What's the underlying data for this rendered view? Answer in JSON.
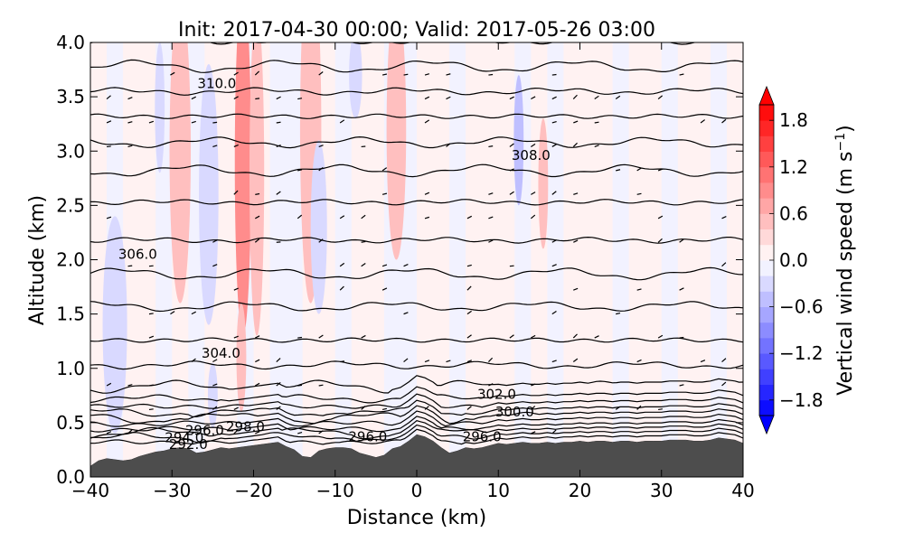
{
  "chart_data": {
    "type": "contourf",
    "title": "Init: 2017-04-30 00:00; Valid: 2017-05-26 03:00",
    "xlabel": "Distance (km)",
    "ylabel": "Altitude (km)",
    "xlim": [
      -40,
      40
    ],
    "ylim": [
      0.0,
      4.0
    ],
    "xticks": [
      "-40",
      "-30",
      "-20",
      "-10",
      "0",
      "10",
      "20",
      "30",
      "40"
    ],
    "xtick_values": [
      -40,
      -30,
      -20,
      -10,
      0,
      10,
      20,
      30,
      40
    ],
    "yticks": [
      "0.0",
      "0.5",
      "1.0",
      "1.5",
      "2.0",
      "2.5",
      "3.0",
      "3.5",
      "4.0"
    ],
    "ytick_values": [
      0.0,
      0.5,
      1.0,
      1.5,
      2.0,
      2.5,
      3.0,
      3.5,
      4.0
    ],
    "colorbar": {
      "label": "Vertical wind speed (m s",
      "label_superscript": "−1",
      "label_close": ")",
      "range": [
        -2.0,
        2.0
      ],
      "ticks": [
        "1.8",
        "1.2",
        "0.6",
        "0.0",
        "−0.6",
        "−1.2",
        "−1.8"
      ],
      "tick_values": [
        1.8,
        1.2,
        0.6,
        0.0,
        -0.6,
        -1.2,
        -1.8
      ],
      "levels": 20
    },
    "contour_labels": [
      {
        "text": "310.0",
        "x": -24.5,
        "y": 3.62
      },
      {
        "text": "308.0",
        "x": 14.0,
        "y": 2.96
      },
      {
        "text": "306.0",
        "x": -34.2,
        "y": 2.05
      },
      {
        "text": "304.0",
        "x": -24.0,
        "y": 1.14
      },
      {
        "text": "302.0",
        "x": 9.8,
        "y": 0.76
      },
      {
        "text": "300.0",
        "x": 12.0,
        "y": 0.6
      },
      {
        "text": "298.0",
        "x": -21.0,
        "y": 0.46
      },
      {
        "text": "296.0",
        "x": -26.0,
        "y": 0.43
      },
      {
        "text": "294.0",
        "x": -28.5,
        "y": 0.36
      },
      {
        "text": "292.0",
        "x": -28.0,
        "y": 0.3
      },
      {
        "text": "296.0",
        "x": -6.0,
        "y": 0.37
      },
      {
        "text": "296.0",
        "x": 8.0,
        "y": 0.37
      }
    ],
    "theta_contour_heights": [
      4.02,
      3.78,
      3.55,
      3.32,
      3.08,
      2.82,
      2.53,
      2.18,
      1.87,
      1.57,
      1.26,
      1.03,
      0.83,
      0.72,
      0.65,
      0.59,
      0.54,
      0.49,
      0.44,
      0.4,
      0.36,
      0.32
    ],
    "terrain": {
      "x": [
        -40,
        -39,
        -38,
        -37,
        -36,
        -35,
        -34,
        -33,
        -32,
        -31,
        -30,
        -29,
        -28,
        -27,
        -26,
        -25,
        -24,
        -23,
        -22,
        -21,
        -20,
        -19,
        -18,
        -17,
        -16,
        -15,
        -14,
        -13,
        -12,
        -11,
        -10,
        -9,
        -8,
        -7,
        -6,
        -5,
        -4,
        -3,
        -2,
        -1,
        0,
        1,
        2,
        3,
        4,
        5,
        6,
        7,
        8,
        9,
        10,
        11,
        12,
        13,
        14,
        15,
        16,
        17,
        18,
        19,
        20,
        21,
        22,
        23,
        24,
        25,
        26,
        27,
        28,
        29,
        30,
        31,
        32,
        33,
        34,
        35,
        36,
        37,
        38,
        39,
        40
      ],
      "z": [
        0.1,
        0.15,
        0.17,
        0.16,
        0.15,
        0.16,
        0.19,
        0.21,
        0.23,
        0.24,
        0.26,
        0.27,
        0.26,
        0.22,
        0.23,
        0.25,
        0.27,
        0.26,
        0.27,
        0.28,
        0.29,
        0.3,
        0.31,
        0.32,
        0.28,
        0.25,
        0.19,
        0.18,
        0.24,
        0.26,
        0.27,
        0.27,
        0.26,
        0.22,
        0.2,
        0.18,
        0.2,
        0.26,
        0.28,
        0.33,
        0.39,
        0.37,
        0.33,
        0.27,
        0.22,
        0.24,
        0.27,
        0.26,
        0.27,
        0.29,
        0.31,
        0.3,
        0.31,
        0.32,
        0.31,
        0.31,
        0.32,
        0.31,
        0.32,
        0.32,
        0.33,
        0.32,
        0.33,
        0.33,
        0.32,
        0.33,
        0.33,
        0.32,
        0.33,
        0.33,
        0.33,
        0.34,
        0.34,
        0.34,
        0.33,
        0.33,
        0.34,
        0.36,
        0.35,
        0.34,
        0.31
      ]
    },
    "w_anomalies": [
      {
        "x": -29.0,
        "y": 3.0,
        "rx": 1.3,
        "ry": 1.4,
        "w": 0.4
      },
      {
        "x": -21.3,
        "y": 2.9,
        "rx": 1.0,
        "ry": 1.6,
        "w": 0.8
      },
      {
        "x": -19.6,
        "y": 2.8,
        "rx": 0.9,
        "ry": 1.5,
        "w": 0.6
      },
      {
        "x": -21.5,
        "y": 1.1,
        "rx": 0.6,
        "ry": 0.5,
        "w": 0.4
      },
      {
        "x": -13.0,
        "y": 3.2,
        "rx": 1.3,
        "ry": 1.6,
        "w": 0.5
      },
      {
        "x": -2.5,
        "y": 3.2,
        "rx": 1.2,
        "ry": 1.2,
        "w": 0.5
      },
      {
        "x": 15.5,
        "y": 2.7,
        "rx": 0.6,
        "ry": 0.6,
        "w": 0.4
      },
      {
        "x": -25.5,
        "y": 2.6,
        "rx": 1.2,
        "ry": 1.2,
        "w": -0.4
      },
      {
        "x": -31.5,
        "y": 3.4,
        "rx": 0.6,
        "ry": 0.6,
        "w": -0.4
      },
      {
        "x": -12.0,
        "y": 2.3,
        "rx": 1.0,
        "ry": 0.8,
        "w": -0.4
      },
      {
        "x": -7.5,
        "y": 3.7,
        "rx": 0.8,
        "ry": 0.4,
        "w": -0.4
      },
      {
        "x": 12.5,
        "y": 3.1,
        "rx": 0.6,
        "ry": 0.6,
        "w": -0.5
      },
      {
        "x": -25.0,
        "y": 0.75,
        "rx": 0.6,
        "ry": 0.3,
        "w": -0.4
      },
      {
        "x": -37.0,
        "y": 1.4,
        "rx": 1.5,
        "ry": 1.0,
        "w": -0.25
      }
    ]
  }
}
